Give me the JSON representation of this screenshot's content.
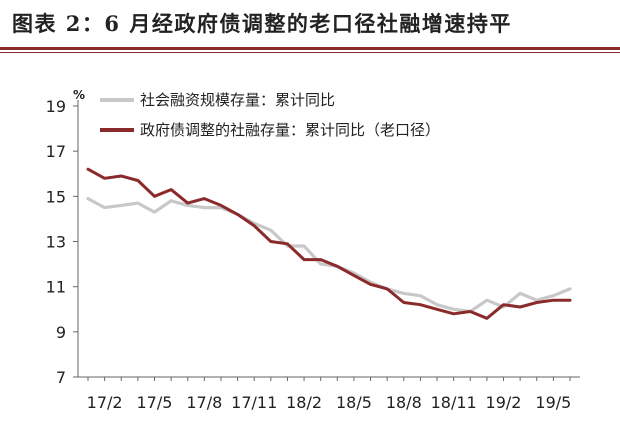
{
  "title": "图表 2：6 月经政府债调整的老口径社融增速持平",
  "colors": {
    "accent": "#8b2a2a",
    "series_gray": "#c8c8c8",
    "series_red": "#8b2a2a"
  },
  "chart_data": {
    "type": "line",
    "title": "图表 2：6 月经政府债调整的老口径社融增速持平",
    "ylabel": "%",
    "xlabel": "",
    "ylim": [
      7,
      19
    ],
    "yticks": [
      7,
      9,
      11,
      13,
      15,
      17,
      19
    ],
    "x": [
      "17/1",
      "17/2",
      "17/3",
      "17/4",
      "17/5",
      "17/6",
      "17/7",
      "17/8",
      "17/9",
      "17/10",
      "17/11",
      "17/12",
      "18/1",
      "18/2",
      "18/3",
      "18/4",
      "18/5",
      "18/6",
      "18/7",
      "18/8",
      "18/9",
      "18/10",
      "18/11",
      "18/12",
      "19/1",
      "19/2",
      "19/3",
      "19/4",
      "19/5",
      "19/6"
    ],
    "xtick_labels": [
      "17/2",
      "17/5",
      "17/8",
      "17/11",
      "18/2",
      "18/5",
      "18/8",
      "18/11",
      "19/2",
      "19/5"
    ],
    "grid": false,
    "legend_position": "top-left",
    "series": [
      {
        "name": "社会融资规模存量：累计同比",
        "color": "#c8c8c8",
        "values": [
          14.9,
          14.5,
          14.6,
          14.7,
          14.3,
          14.8,
          14.6,
          14.5,
          14.5,
          14.2,
          13.8,
          13.5,
          12.8,
          12.8,
          12.0,
          11.9,
          11.6,
          11.2,
          10.9,
          10.7,
          10.6,
          10.2,
          10.0,
          9.9,
          10.4,
          10.1,
          10.7,
          10.4,
          10.6,
          10.9
        ]
      },
      {
        "name": "政府债调整的社融存量：累计同比（老口径）",
        "color": "#8b2a2a",
        "values": [
          16.2,
          15.8,
          15.9,
          15.7,
          15.0,
          15.3,
          14.7,
          14.9,
          14.6,
          14.2,
          13.7,
          13.0,
          12.9,
          12.2,
          12.2,
          11.9,
          11.5,
          11.1,
          10.9,
          10.3,
          10.2,
          10.0,
          9.8,
          9.9,
          9.6,
          10.2,
          10.1,
          10.3,
          10.4,
          10.4
        ]
      }
    ]
  }
}
